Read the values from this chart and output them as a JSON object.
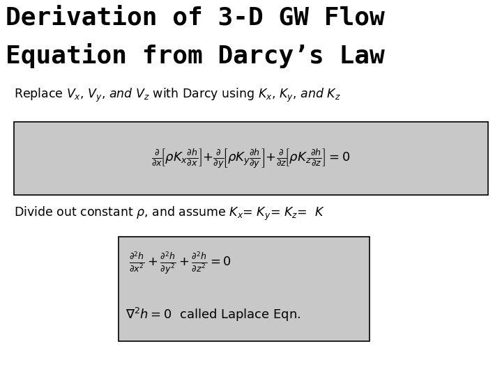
{
  "title_line1": "Derivation of 3-D GW Flow",
  "title_line2": "Equation from Darcy’s Law",
  "box1_color": "#c8c8c8",
  "box2_color": "#c8c8c8",
  "bg_color": "#ffffff",
  "title_fontsize": 26,
  "body_fontsize": 12.5,
  "eq1_fontsize": 13,
  "eq2_fontsize": 13
}
